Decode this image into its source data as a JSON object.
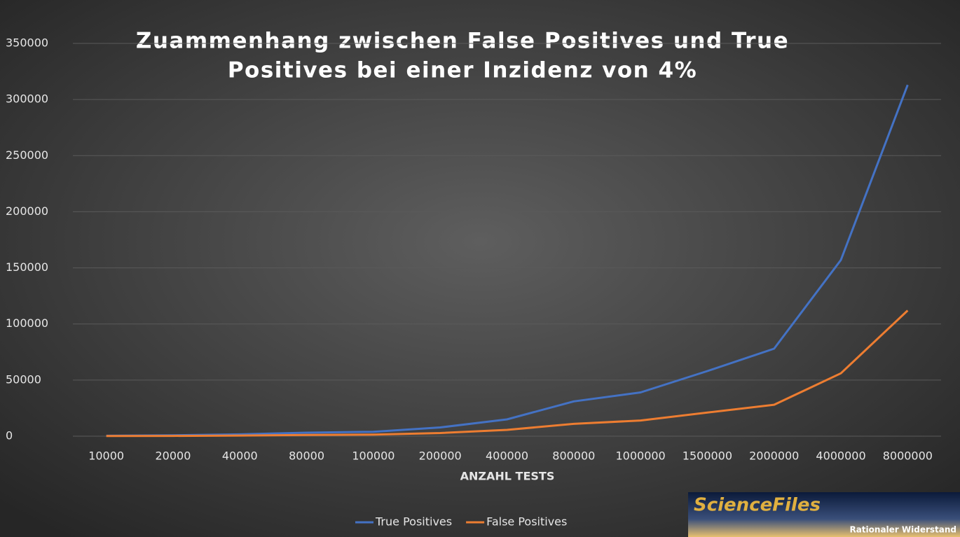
{
  "chart_data": {
    "type": "line",
    "title": [
      "Zuammenhang zwischen False Positives und True",
      "Positives bei einer Inzidenz von 4%"
    ],
    "x_label": "ANZAHL TESTS",
    "categories": [
      "10000",
      "20000",
      "40000",
      "80000",
      "100000",
      "200000",
      "400000",
      "800000",
      "1000000",
      "1500000",
      "2000000",
      "4000000",
      "8000000"
    ],
    "series": [
      {
        "name": "True Positives",
        "color": "#4472c4",
        "values": [
          400,
          800,
          1600,
          3100,
          3900,
          7800,
          15000,
          31000,
          39000,
          58000,
          78000,
          157000,
          313000
        ]
      },
      {
        "name": "False Positives",
        "color": "#ed7d31",
        "values": [
          140,
          280,
          560,
          1100,
          1400,
          2800,
          5600,
          11000,
          14000,
          21000,
          28000,
          56000,
          112000
        ]
      }
    ],
    "ylim": [
      0,
      350000
    ],
    "yticks": [
      0,
      50000,
      100000,
      150000,
      200000,
      250000,
      300000,
      350000
    ],
    "grid": true,
    "legend": "bottom",
    "watermark": {
      "title": "ScienceFiles",
      "subtitle": "Rationaler Widerstand"
    }
  }
}
